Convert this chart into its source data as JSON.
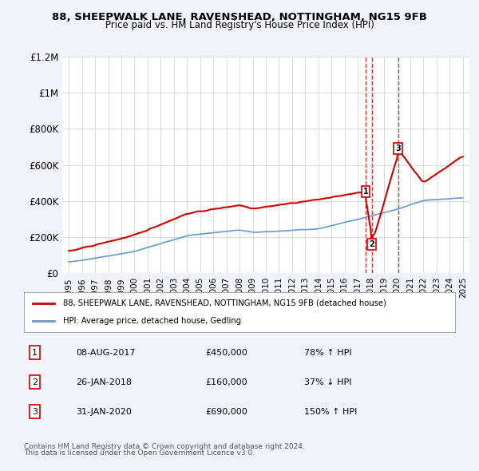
{
  "title": "88, SHEEPWALK LANE, RAVENSHEAD, NOTTINGHAM, NG15 9FB",
  "subtitle": "Price paid vs. HM Land Registry's House Price Index (HPI)",
  "red_label": "88, SHEEPWALK LANE, RAVENSHEAD, NOTTINGHAM, NG15 9FB (detached house)",
  "blue_label": "HPI: Average price, detached house, Gedling",
  "footer1": "Contains HM Land Registry data © Crown copyright and database right 2024.",
  "footer2": "This data is licensed under the Open Government Licence v3.0.",
  "transactions": [
    {
      "num": 1,
      "date": "08-AUG-2017",
      "price": "£450,000",
      "pct": "78% ↑ HPI",
      "year": 2017.6
    },
    {
      "num": 2,
      "date": "26-JAN-2018",
      "price": "£160,000",
      "pct": "37% ↓ HPI",
      "year": 2018.07
    },
    {
      "num": 3,
      "date": "31-JAN-2020",
      "price": "£690,000",
      "pct": "150% ↑ HPI",
      "year": 2020.07
    }
  ],
  "ylim": [
    0,
    1200000
  ],
  "yticks": [
    0,
    200000,
    400000,
    600000,
    800000,
    1000000,
    1200000
  ],
  "ytick_labels": [
    "£0",
    "£200K",
    "£400K",
    "£600K",
    "£800K",
    "£1M",
    "£1.2M"
  ],
  "xlim": [
    1994.5,
    2025.5
  ],
  "bg_color": "#f0f4fa",
  "plot_bg_color": "#ffffff",
  "red_color": "#cc0000",
  "blue_color": "#6699cc",
  "dashed_color": "#cc0000"
}
